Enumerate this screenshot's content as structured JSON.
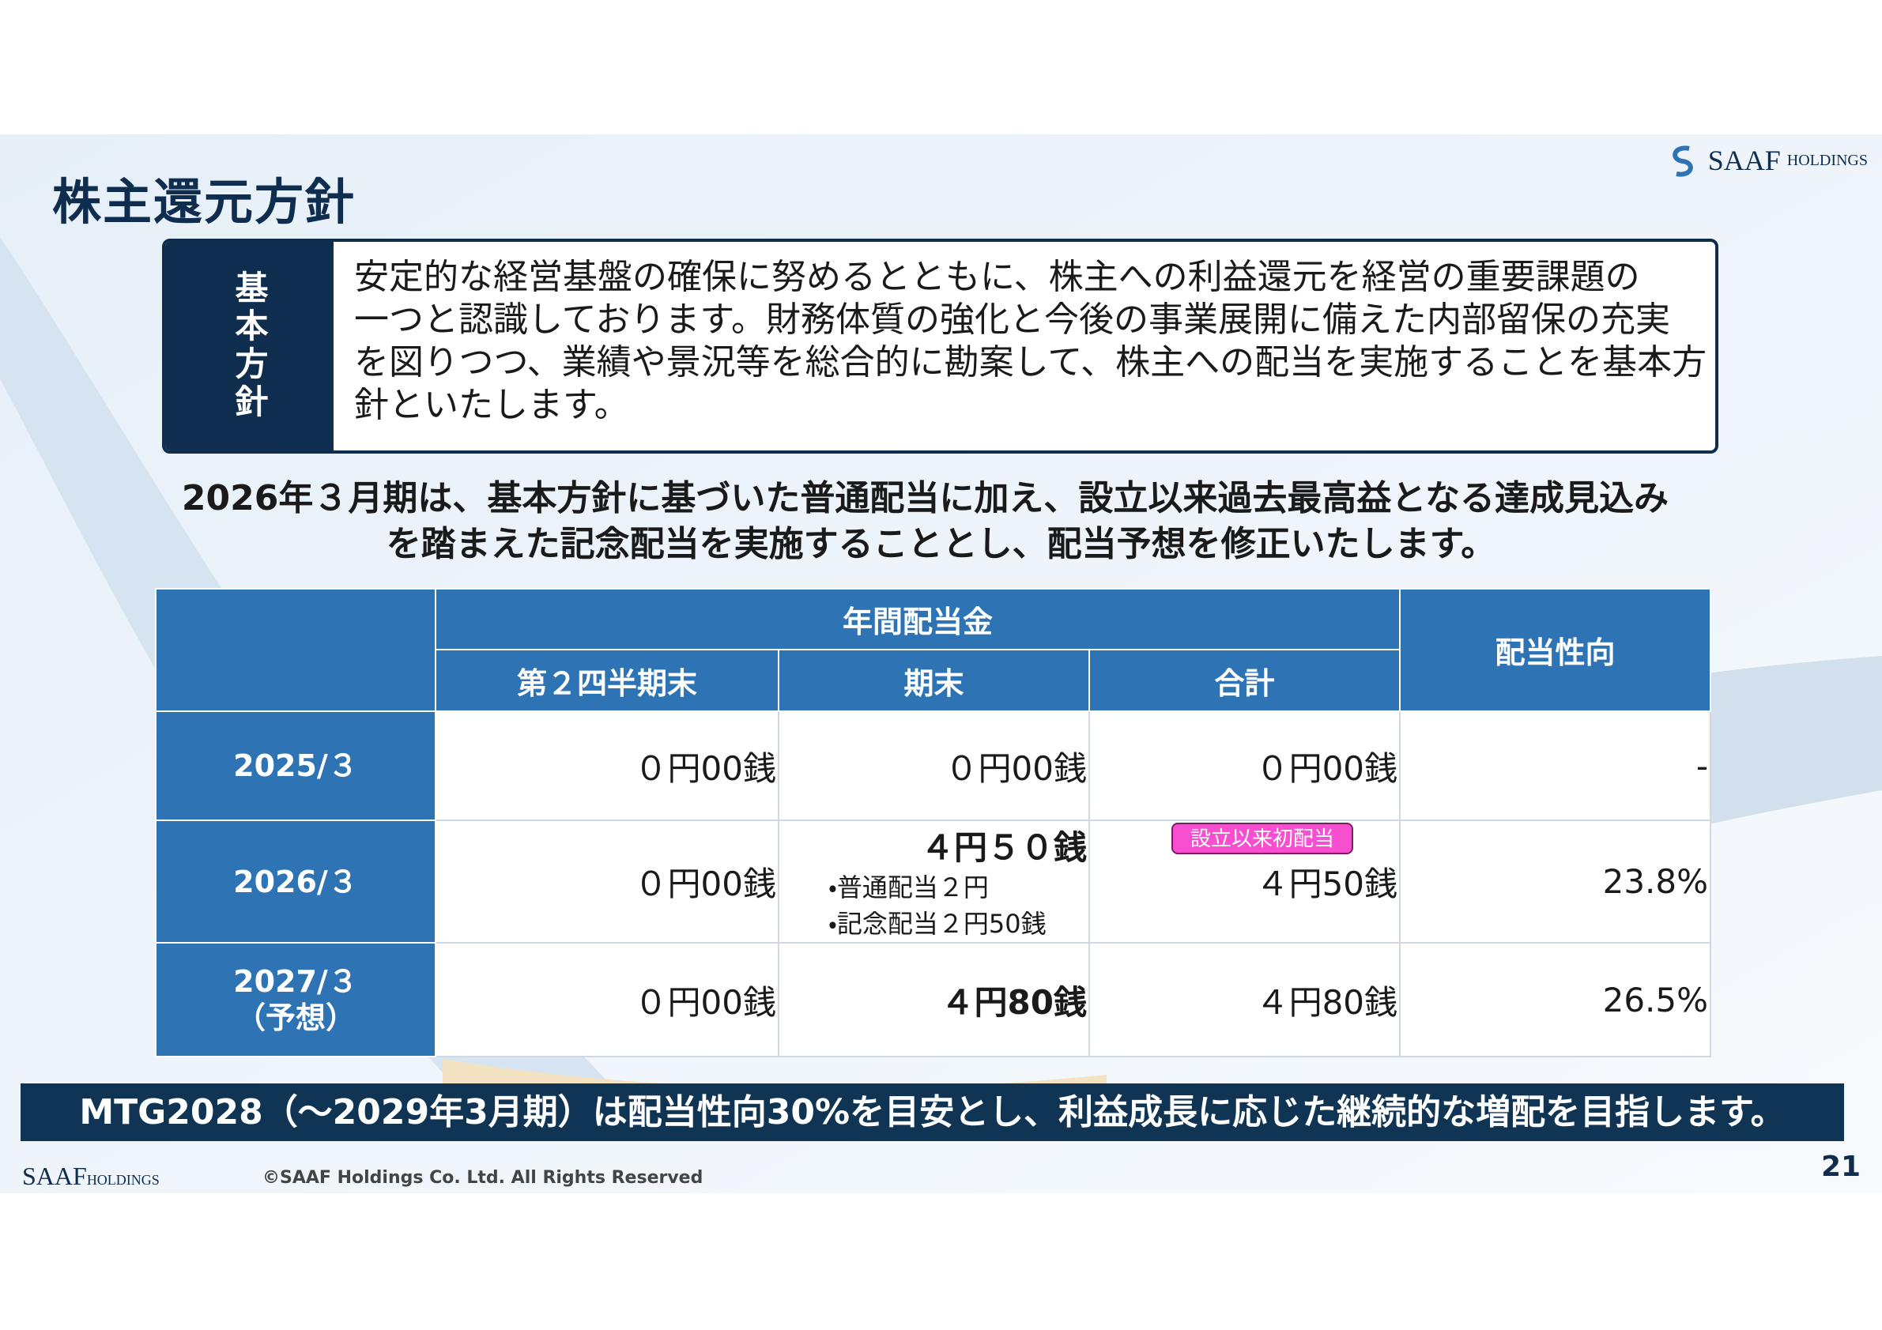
{
  "header": {
    "title": "株主還元方針",
    "logo": {
      "mark": "SAAF",
      "sub": "HOLDINGS"
    }
  },
  "policy": {
    "label": "基本方針",
    "lines": [
      "安定的な経営基盤の確保に努めるとともに、株主への利益還元を経営の重要課題の",
      "一つと認識しております。財務体質の強化と今後の事業展開に備えた内部留保の充実",
      "を図りつつ、業績や景況等を総合的に勘案して、株主への配当を実施することを基本方",
      "針といたします。"
    ]
  },
  "headline": [
    "2026年３月期は、基本方針に基づいた普通配当に加え、設立以来過去最高益となる達成見込み",
    "を踏まえた記念配当を実施することとし、配当予想を修正いたします。"
  ],
  "table": {
    "group_header": "年間配当金",
    "payout_header": "配当性向",
    "columns": [
      "第２四半期末",
      "期末",
      "合計"
    ],
    "rows": [
      {
        "label": [
          "2025/３"
        ],
        "cells": [
          [
            "０円00銭"
          ],
          [
            "０円00銭"
          ],
          [
            "０円00銭"
          ],
          [
            "-"
          ]
        ]
      },
      {
        "label": [
          "2026/３"
        ],
        "cells": [
          [
            "０円00銭"
          ],
          [
            "４円５０銭",
            "・普通配当２円",
            "・記念配当２円50銭"
          ],
          [
            "４円50銭"
          ],
          [
            "23.8%"
          ]
        ]
      },
      {
        "label": [
          "2027/３",
          "（予想）"
        ],
        "cells": [
          [
            "０円00銭"
          ],
          [
            "４円80銭"
          ],
          [
            "４円80銭"
          ],
          [
            "26.5%"
          ]
        ]
      }
    ],
    "badge": "設立以来初配当"
  },
  "banner": "MTG2028（～2029年3月期）は配当性向30%を目安とし、利益成長に応じた継続的な増配を目指します。",
  "footer": {
    "logo": {
      "mark": "SAAF",
      "sub": "HOLDINGS"
    },
    "copyright": "©SAAF Holdings Co. Ltd. All Rights Reserved",
    "page": "21"
  }
}
